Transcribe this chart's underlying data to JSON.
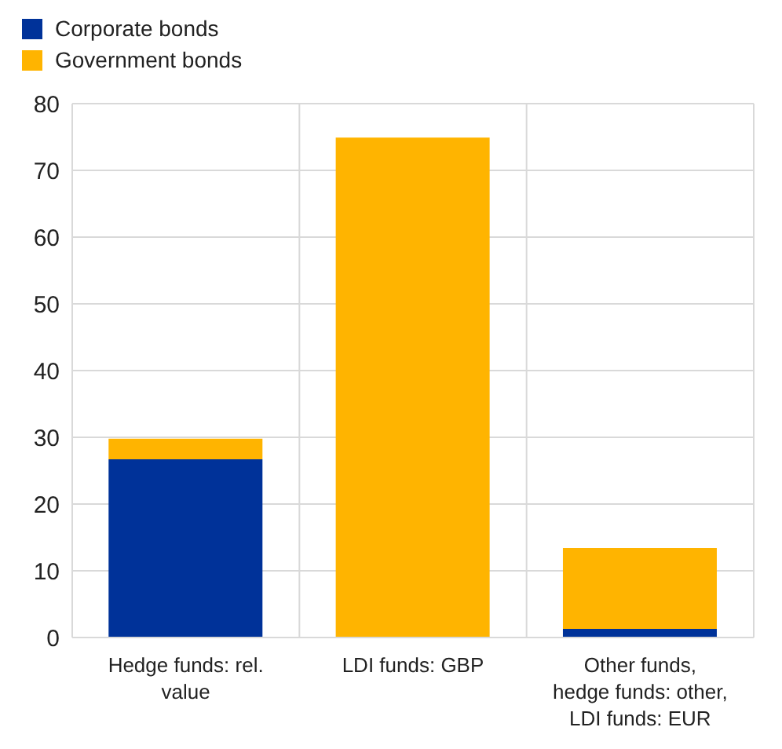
{
  "chart_data": {
    "type": "bar",
    "stacked": true,
    "categories": [
      "Hedge funds: rel. value",
      "LDI funds: GBP",
      "Other funds, hedge funds: other, LDI funds: EUR"
    ],
    "series": [
      {
        "name": "Corporate bonds",
        "color": "#003299",
        "values": [
          26.7,
          0,
          1.3
        ]
      },
      {
        "name": "Government bonds",
        "color": "#ffb400",
        "values": [
          3.1,
          74.9,
          12.1
        ]
      }
    ],
    "ylim": [
      0,
      80
    ],
    "yticks": [
      0,
      10,
      20,
      30,
      40,
      50,
      60,
      70,
      80
    ],
    "grid": true,
    "legend": "top left"
  }
}
